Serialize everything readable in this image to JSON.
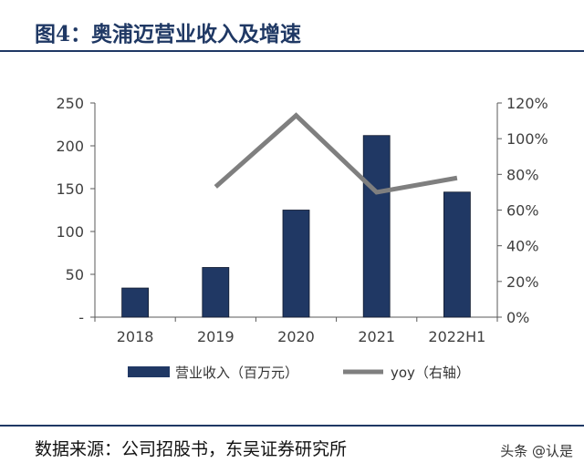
{
  "figure": {
    "title": "图4：奥浦迈营业收入及增速",
    "source": "数据来源：公司招股书，东吴证券研究所",
    "watermark": "头条 @认是"
  },
  "colors": {
    "bar": "#203864",
    "line": "#7f7f7f",
    "rule": "#1f3864",
    "axis": "#595959"
  },
  "chart_data": {
    "type": "bar",
    "categories": [
      "2018",
      "2019",
      "2020",
      "2021",
      "2022H1"
    ],
    "series": [
      {
        "name": "营业收入（百万元）",
        "type": "bar",
        "axis": "left",
        "values": [
          34,
          58,
          125,
          212,
          146
        ]
      },
      {
        "name": "yoy（右轴）",
        "type": "line",
        "axis": "right",
        "values": [
          null,
          73,
          113,
          70,
          78
        ]
      }
    ],
    "y_left": {
      "min": 0,
      "max": 250,
      "ticks": [
        0,
        50,
        100,
        150,
        200,
        250
      ],
      "tick_labels": [
        "-",
        "50",
        "100",
        "150",
        "200",
        "250"
      ]
    },
    "y_right": {
      "min": 0,
      "max": 120,
      "ticks": [
        0,
        20,
        40,
        60,
        80,
        100,
        120
      ],
      "tick_labels": [
        "0%",
        "20%",
        "40%",
        "60%",
        "80%",
        "100%",
        "120%"
      ]
    },
    "legend_position": "bottom",
    "grid": false
  }
}
